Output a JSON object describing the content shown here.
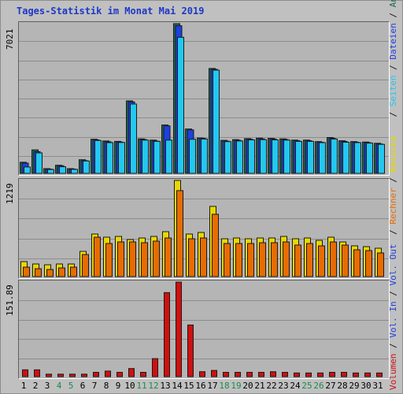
{
  "title": "Tages-Statistik im Monat Mai 2019",
  "colors": {
    "title": "#1d38c6",
    "anfragen": "#1d6a55",
    "dateien": "#1f3fe0",
    "seiten": "#22c8f0",
    "besuche": "#e8d800",
    "rechner": "#e86c00",
    "volumen_out": "#1f3fe0",
    "volumen_in": "#d01010",
    "weekend_label": "#1d8a4a"
  },
  "legend_top": [
    {
      "text": "Anfragen",
      "color_key": "anfragen"
    },
    {
      "text": "Dateien",
      "color_key": "dateien"
    },
    {
      "text": "Seiten",
      "color_key": "seiten"
    }
  ],
  "legend_mid": [
    {
      "text": "Besuche",
      "color_key": "besuche"
    },
    {
      "text": "Rechner",
      "color_key": "rechner"
    }
  ],
  "legend_bot": [
    {
      "text": "Vol. Out",
      "color_key": "volumen_out"
    },
    {
      "text": "Vol. In",
      "color_key": "volumen_out"
    },
    {
      "text": "Volumen",
      "color_key": "volumen_in"
    }
  ],
  "chart_data": [
    {
      "type": "bar",
      "title": "Tages-Statistik im Monat Mai 2019",
      "ymax_label": "7021",
      "ylim": [
        0,
        7021
      ],
      "categories": [
        "1",
        "2",
        "3",
        "4",
        "5",
        "6",
        "7",
        "8",
        "9",
        "10",
        "11",
        "12",
        "13",
        "14",
        "15",
        "16",
        "17",
        "18",
        "19",
        "20",
        "21",
        "22",
        "23",
        "24",
        "25",
        "26",
        "27",
        "28",
        "29",
        "30",
        "31"
      ],
      "weekend_days": [
        "4",
        "5",
        "11",
        "12",
        "18",
        "19",
        "25",
        "26"
      ],
      "series": [
        {
          "name": "Anfragen",
          "values": [
            520,
            1100,
            220,
            380,
            220,
            640,
            1600,
            1520,
            1500,
            3400,
            1620,
            1560,
            2270,
            7021,
            2080,
            1660,
            4920,
            1550,
            1580,
            1630,
            1650,
            1640,
            1620,
            1560,
            1560,
            1490,
            1680,
            1530,
            1490,
            1470,
            1410
          ]
        },
        {
          "name": "Dateien",
          "values": [
            480,
            1020,
            200,
            360,
            200,
            600,
            1570,
            1480,
            1470,
            3350,
            1590,
            1520,
            2230,
            6920,
            2040,
            1640,
            4880,
            1510,
            1550,
            1600,
            1620,
            1610,
            1590,
            1530,
            1530,
            1460,
            1640,
            1500,
            1460,
            1440,
            1380
          ]
        },
        {
          "name": "Seiten",
          "values": [
            300,
            960,
            180,
            310,
            190,
            580,
            1540,
            1440,
            1450,
            3250,
            1560,
            1500,
            1560,
            6380,
            1600,
            1610,
            4840,
            1490,
            1520,
            1570,
            1580,
            1570,
            1560,
            1500,
            1500,
            1440,
            1610,
            1460,
            1440,
            1420,
            1360
          ]
        }
      ]
    },
    {
      "type": "bar",
      "ymax_label": "1219",
      "ylim": [
        0,
        1219
      ],
      "categories": [
        "1",
        "2",
        "3",
        "4",
        "5",
        "6",
        "7",
        "8",
        "9",
        "10",
        "11",
        "12",
        "13",
        "14",
        "15",
        "16",
        "17",
        "18",
        "19",
        "20",
        "21",
        "22",
        "23",
        "24",
        "25",
        "26",
        "27",
        "28",
        "29",
        "30",
        "31"
      ],
      "series": [
        {
          "name": "Besuche",
          "values": [
            190,
            160,
            150,
            160,
            160,
            320,
            540,
            500,
            510,
            470,
            490,
            510,
            570,
            1219,
            540,
            560,
            890,
            480,
            490,
            480,
            490,
            490,
            510,
            480,
            490,
            460,
            500,
            440,
            390,
            380,
            360
          ]
        },
        {
          "name": "Rechner",
          "values": [
            120,
            100,
            90,
            110,
            120,
            280,
            500,
            420,
            440,
            440,
            430,
            450,
            490,
            1090,
            480,
            490,
            790,
            420,
            420,
            420,
            430,
            430,
            440,
            400,
            420,
            390,
            440,
            400,
            340,
            330,
            300
          ]
        }
      ]
    },
    {
      "type": "bar",
      "ymax_label": "151.89",
      "ylim": [
        0,
        151.89
      ],
      "categories": [
        "1",
        "2",
        "3",
        "4",
        "5",
        "6",
        "7",
        "8",
        "9",
        "10",
        "11",
        "12",
        "13",
        "14",
        "15",
        "16",
        "17",
        "18",
        "19",
        "20",
        "21",
        "22",
        "23",
        "24",
        "25",
        "26",
        "27",
        "28",
        "29",
        "30",
        "31"
      ],
      "series": [
        {
          "name": "Volumen",
          "values": [
            11,
            11,
            4,
            4,
            4,
            4,
            7,
            9,
            7,
            13,
            7,
            29,
            135,
            151.89,
            83,
            8,
            10,
            7,
            7,
            7,
            7,
            8,
            7,
            6,
            6,
            6,
            7,
            7,
            6,
            6,
            6
          ]
        }
      ]
    }
  ]
}
